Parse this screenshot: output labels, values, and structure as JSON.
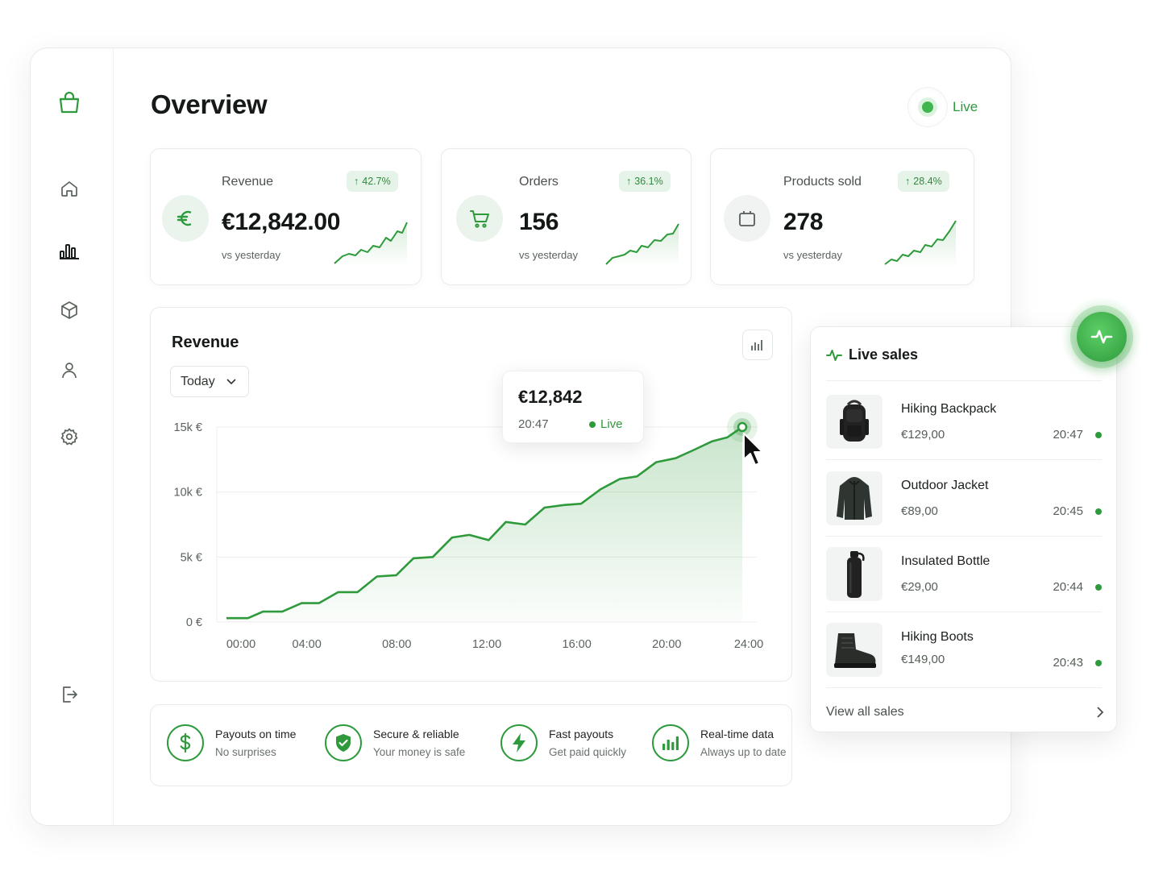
{
  "page": {
    "title": "Overview"
  },
  "live_indicator": {
    "label": "Live"
  },
  "kpis": [
    {
      "label": "Revenue",
      "change": "42.7%",
      "value": "€12,842.00",
      "sub": "vs yesterday",
      "icon": "euro-icon"
    },
    {
      "label": "Orders",
      "change": "36.1%",
      "value": "156",
      "sub": "vs yesterday",
      "icon": "cart-icon"
    },
    {
      "label": "Products sold",
      "change": "28.4%",
      "value": "278",
      "sub": "vs yesterday",
      "icon": "box-icon"
    }
  ],
  "revenue": {
    "title": "Revenue",
    "period": "Today",
    "tooltip": {
      "value": "€12,842",
      "time": "20:47",
      "status": "Live"
    }
  },
  "chart_data": {
    "type": "area",
    "title": "Revenue",
    "xlabel": "",
    "ylabel": "",
    "x_ticks": [
      "00:00",
      "04:00",
      "08:00",
      "12:00",
      "16:00",
      "20:00",
      "24:00"
    ],
    "y_ticks": [
      "0 €",
      "5k €",
      "10k €",
      "15k €"
    ],
    "ylim": [
      0,
      15000
    ],
    "xlim": [
      0,
      24
    ],
    "grid": true,
    "series": [
      {
        "x": [
          0,
          1.0,
          1.7,
          2.6,
          3.5,
          4.3,
          5.2,
          6.1,
          7.0,
          7.9,
          8.7,
          9.6,
          10.5,
          11.3,
          12.2,
          13.0,
          13.9,
          14.8,
          15.7,
          16.5,
          17.4,
          18.3,
          19.1,
          20.0,
          20.9,
          21.7,
          22.6,
          23.3,
          24.0
        ],
        "y": [
          300,
          300,
          800,
          800,
          1450,
          1450,
          2300,
          2300,
          3500,
          3600,
          4900,
          5000,
          6500,
          6700,
          6300,
          7700,
          7500,
          8800,
          9000,
          9100,
          10200,
          11000,
          11200,
          12300,
          12600,
          13200,
          13900,
          14200,
          15000
        ]
      }
    ]
  },
  "live_sales": {
    "title": "Live sales",
    "items": [
      {
        "name": "Hiking Backpack",
        "price": "€129,00",
        "time": "20:47"
      },
      {
        "name": "Outdoor Jacket",
        "price": "€89,00",
        "time": "20:45"
      },
      {
        "name": "Insulated Bottle",
        "price": "€29,00",
        "time": "20:44"
      },
      {
        "name": "Hiking Boots",
        "price": "€149,00",
        "time": "20:43"
      }
    ],
    "view_all": "View all sales"
  },
  "features": [
    {
      "title": "Payouts on time",
      "sub": "No surprises",
      "icon": "dollar-icon"
    },
    {
      "title": "Secure & reliable",
      "sub": "Your money is safe",
      "icon": "shield-check-icon"
    },
    {
      "title": "Fast payouts",
      "sub": "Get paid quickly",
      "icon": "lightning-icon"
    },
    {
      "title": "Real-time data",
      "sub": "Always up to date",
      "icon": "bar-chart-icon"
    }
  ],
  "colors": {
    "accent": "#2e9a3c",
    "accent_light": "#e6f3e8",
    "text": "#161a17"
  }
}
